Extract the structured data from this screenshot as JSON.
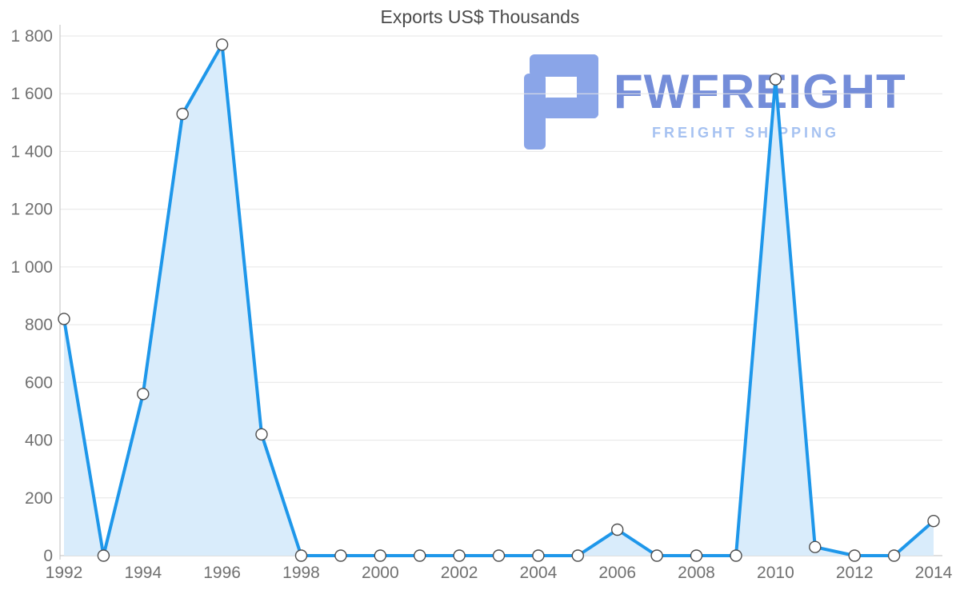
{
  "chart_data": {
    "type": "area",
    "title": "Exports US$ Thousands",
    "x": [
      1992,
      1993,
      1994,
      1995,
      1996,
      1997,
      1998,
      1999,
      2000,
      2001,
      2002,
      2003,
      2004,
      2005,
      2006,
      2007,
      2008,
      2009,
      2010,
      2011,
      2012,
      2013,
      2014
    ],
    "values": [
      820,
      0,
      560,
      1530,
      1770,
      420,
      0,
      0,
      0,
      0,
      0,
      0,
      0,
      0,
      90,
      0,
      0,
      0,
      1650,
      30,
      0,
      0,
      120
    ],
    "ylim": [
      0,
      1800
    ],
    "ytick_step": 200,
    "ytick_labels": [
      "0",
      "200",
      "400",
      "600",
      "800",
      "1 000",
      "1 200",
      "1 400",
      "1 600",
      "1 800"
    ],
    "xtick_labels": [
      "1992",
      "1994",
      "1996",
      "1998",
      "2000",
      "2002",
      "2004",
      "2006",
      "2008",
      "2010",
      "2012",
      "2014"
    ],
    "xlabel": "",
    "ylabel": "",
    "grid": true,
    "legend": false,
    "colors": {
      "line": "#1e97ea",
      "fill": "#d9ecfb",
      "marker_fill": "#ffffff",
      "marker_stroke": "#4d4d4d",
      "grid": "#e6e6e6",
      "axis": "#bfbfbf",
      "tick": "#707070",
      "title": "#4a4a4a"
    }
  },
  "watermark": {
    "brand": "FWFREIGHT",
    "tagline": "FREIGHT SHIPPING",
    "brand_color": "#6d87d7",
    "tagline_color": "#a6c2f1",
    "logo_color": "#8aa5e8"
  }
}
